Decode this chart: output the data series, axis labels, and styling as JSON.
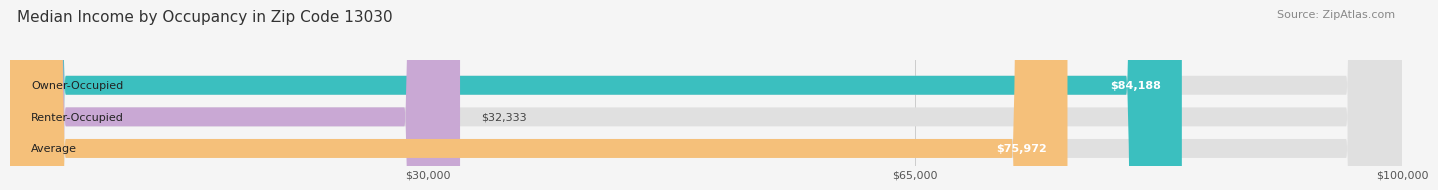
{
  "title": "Median Income by Occupancy in Zip Code 13030",
  "source": "Source: ZipAtlas.com",
  "categories": [
    "Owner-Occupied",
    "Renter-Occupied",
    "Average"
  ],
  "values": [
    84188,
    32333,
    75972
  ],
  "bar_colors": [
    "#3bbfbf",
    "#c9a8d4",
    "#f5c07a"
  ],
  "value_labels": [
    "$84,188",
    "$32,333",
    "$75,972"
  ],
  "xlim": [
    0,
    100000
  ],
  "xticks": [
    0,
    30000,
    65000,
    100000
  ],
  "xtick_labels": [
    "",
    "$30,000",
    "$65,000",
    "$100,000"
  ],
  "background_color": "#f5f5f5",
  "bar_background_color": "#e0e0e0",
  "title_fontsize": 11,
  "source_fontsize": 8,
  "bar_label_fontsize": 8,
  "value_label_fontsize": 8
}
